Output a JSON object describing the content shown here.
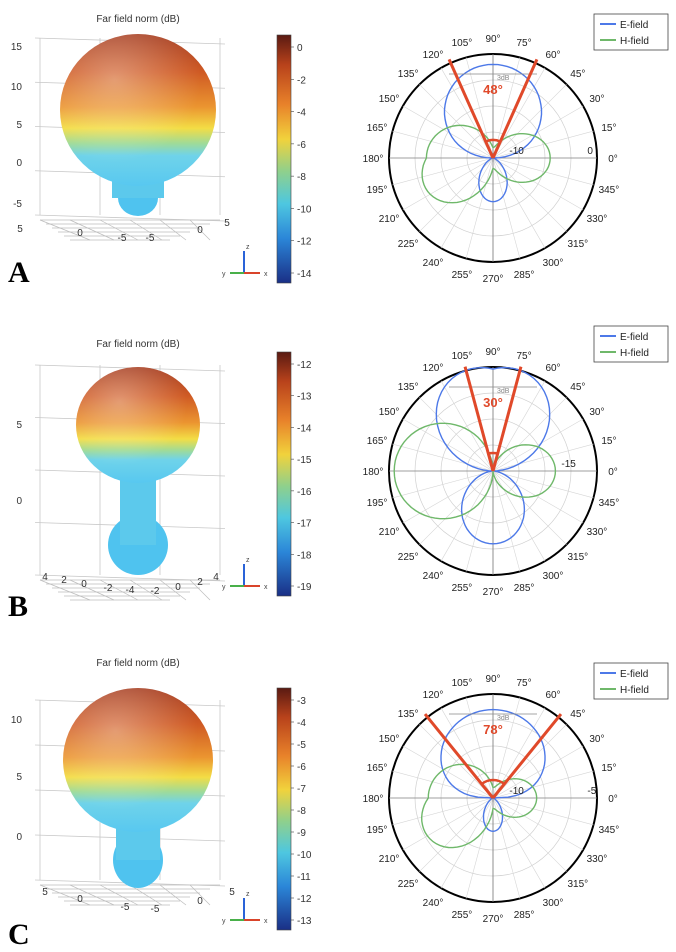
{
  "chart_data": [
    {
      "panel": "A",
      "type": "surface",
      "title": "Far field norm (dB)",
      "z_ticks": [
        "15",
        "10",
        "5",
        "0",
        "-5"
      ],
      "xy_ticks": [
        "5",
        "0",
        "-5",
        "-5",
        "0",
        "5"
      ],
      "colorbar_ticks": [
        "0",
        "-2",
        "-4",
        "-6",
        "-8",
        "-10",
        "-12",
        "-14"
      ],
      "axes": {
        "z": "z",
        "y": "y",
        "x": "x"
      }
    },
    {
      "panel": "A",
      "type": "polar",
      "series": [
        {
          "name": "E-field",
          "color": "#4d79e8"
        },
        {
          "name": "H-field",
          "color": "#6fb86a"
        }
      ],
      "angle_labels": [
        "90°",
        "75°",
        "60°",
        "45°",
        "30°",
        "15°",
        "0°",
        "345°",
        "330°",
        "315°",
        "300°",
        "285°",
        "270°",
        "255°",
        "240°",
        "225°",
        "210°",
        "195°",
        "180°",
        "165°",
        "150°",
        "135°",
        "120°",
        "105°"
      ],
      "radial_labels": [
        "0",
        "-10"
      ],
      "beamwidth_label": "48°",
      "beamwidth_deg": 48,
      "ref_label": "3dB"
    },
    {
      "panel": "B",
      "type": "surface",
      "title": "Far field norm (dB)",
      "z_ticks": [
        "5",
        "0"
      ],
      "xy_ticks": [
        "4",
        "2",
        "0",
        "-2",
        "-4",
        "-2",
        "0",
        "2",
        "4"
      ],
      "colorbar_ticks": [
        "-12",
        "-13",
        "-14",
        "-15",
        "-16",
        "-17",
        "-18",
        "-19"
      ],
      "axes": {
        "z": "z",
        "y": "y",
        "x": "x"
      }
    },
    {
      "panel": "B",
      "type": "polar",
      "series": [
        {
          "name": "E-field",
          "color": "#4d79e8"
        },
        {
          "name": "H-field",
          "color": "#6fb86a"
        }
      ],
      "angle_labels": [
        "90°",
        "75°",
        "60°",
        "45°",
        "30°",
        "15°",
        "0°",
        "345°",
        "330°",
        "315°",
        "300°",
        "285°",
        "270°",
        "255°",
        "240°",
        "225°",
        "210°",
        "195°",
        "180°",
        "165°",
        "150°",
        "135°",
        "120°",
        "105°"
      ],
      "radial_labels": [
        "-15"
      ],
      "beamwidth_label": "30°",
      "beamwidth_deg": 30,
      "ref_label": "3dB"
    },
    {
      "panel": "C",
      "type": "surface",
      "title": "Far field norm (dB)",
      "z_ticks": [
        "10",
        "5",
        "0"
      ],
      "xy_ticks": [
        "5",
        "0",
        "-5",
        "-5",
        "0",
        "5"
      ],
      "colorbar_ticks": [
        "-3",
        "-4",
        "-5",
        "-6",
        "-7",
        "-8",
        "-9",
        "-10",
        "-11",
        "-12",
        "-13"
      ],
      "axes": {
        "z": "z",
        "y": "y",
        "x": "x"
      }
    },
    {
      "panel": "C",
      "type": "polar",
      "series": [
        {
          "name": "E-field",
          "color": "#4d79e8"
        },
        {
          "name": "H-field",
          "color": "#6fb86a"
        }
      ],
      "angle_labels": [
        "90°",
        "75°",
        "60°",
        "45°",
        "30°",
        "15°",
        "0°",
        "345°",
        "330°",
        "315°",
        "300°",
        "285°",
        "270°",
        "255°",
        "240°",
        "225°",
        "210°",
        "195°",
        "180°",
        "165°",
        "150°",
        "135°",
        "120°",
        "105°"
      ],
      "radial_labels": [
        "-5",
        "-10"
      ],
      "beamwidth_label": "78°",
      "beamwidth_deg": 78,
      "ref_label": "3dB"
    }
  ],
  "panel_labels": [
    "A",
    "B",
    "C"
  ],
  "colors": {
    "beam_lines": "#e0492a",
    "e_field": "#4d79e8",
    "h_field": "#6fb86a"
  }
}
